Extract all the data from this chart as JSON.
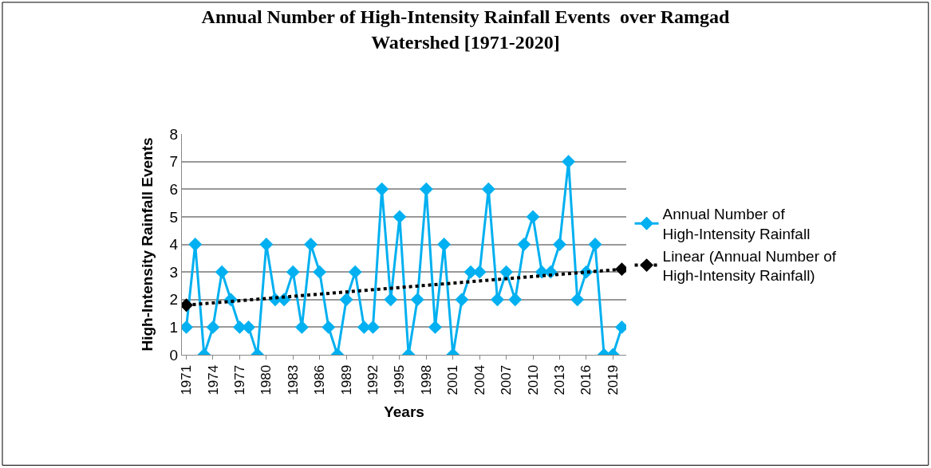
{
  "chart_data": {
    "type": "line",
    "title": "Annual Number of High-Intensity Rainfall Events  over Ramgad Watershed [1971-2020]",
    "xlabel": "Years",
    "ylabel": "High-Intensity Rainfall Events",
    "categories": [
      "1971",
      null,
      null,
      "1974",
      null,
      null,
      "1977",
      null,
      null,
      "1980",
      null,
      null,
      "1983",
      null,
      null,
      "1986",
      null,
      null,
      "1989",
      null,
      null,
      "1992",
      null,
      null,
      "1995",
      null,
      null,
      "1998",
      null,
      null,
      "2001",
      null,
      null,
      "2004",
      null,
      null,
      "2007",
      null,
      null,
      "2010",
      null,
      null,
      "2013",
      null,
      null,
      "2016",
      null,
      null,
      "2019",
      null
    ],
    "series": [
      {
        "name": "Annual Number of High-Intensity Rainfall",
        "color": "#00b0f0",
        "marker": "diamond",
        "line_style": "solid",
        "values": [
          1,
          4,
          0,
          1,
          3,
          2,
          1,
          1,
          0,
          4,
          2,
          2,
          3,
          1,
          4,
          3,
          1,
          0,
          2,
          3,
          1,
          1,
          6,
          2,
          5,
          0,
          2,
          6,
          1,
          4,
          0,
          2,
          3,
          3,
          6,
          2,
          3,
          2,
          4,
          5,
          3,
          3,
          4,
          7,
          2,
          3,
          4,
          0,
          0,
          1
        ]
      },
      {
        "name": "Linear (Annual Number of High-Intensity Rainfall)",
        "color": "#000000",
        "marker": "diamond",
        "line_style": "dotted",
        "values": [
          1.8,
          null,
          null,
          null,
          null,
          null,
          null,
          null,
          null,
          null,
          null,
          null,
          null,
          null,
          null,
          null,
          null,
          null,
          null,
          null,
          null,
          null,
          null,
          null,
          null,
          null,
          null,
          null,
          null,
          null,
          null,
          null,
          null,
          null,
          null,
          null,
          null,
          null,
          null,
          null,
          null,
          null,
          null,
          null,
          null,
          null,
          null,
          null,
          null,
          3.1
        ]
      }
    ],
    "ylim": [
      0,
      8
    ],
    "yticks": [
      0,
      1,
      2,
      3,
      4,
      5,
      6,
      7,
      8
    ],
    "grid": "y",
    "legend": "right"
  }
}
